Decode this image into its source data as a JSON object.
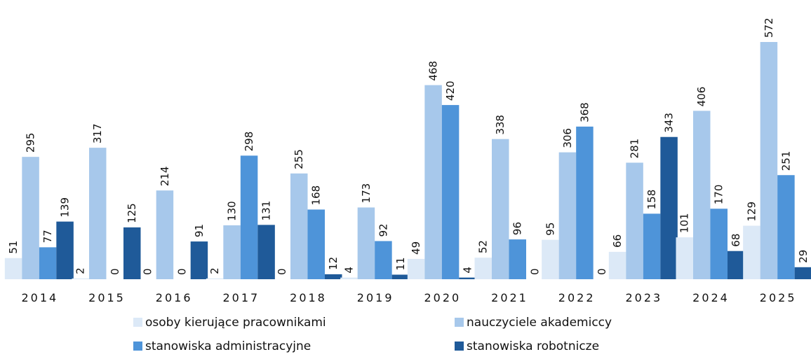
{
  "chart_data": {
    "type": "bar",
    "categories": [
      "2014",
      "2015",
      "2016",
      "2017",
      "2018",
      "2019",
      "2020",
      "2021",
      "2022",
      "2023",
      "2024",
      "2025"
    ],
    "series": [
      {
        "name": "osoby kierujące pracownikami",
        "color": "#dce9f7",
        "values": [
          51,
          2,
          0,
          2,
          0,
          4,
          49,
          52,
          95,
          66,
          101,
          129
        ]
      },
      {
        "name": "nauczyciele akademiccy",
        "color": "#a7c8eb",
        "values": [
          295,
          317,
          214,
          130,
          255,
          173,
          468,
          338,
          306,
          281,
          406,
          572
        ]
      },
      {
        "name": "stanowiska administracyjne",
        "color": "#4e94d9",
        "values": [
          77,
          0,
          0,
          298,
          168,
          92,
          420,
          96,
          368,
          158,
          170,
          251
        ]
      },
      {
        "name": "stanowiska robotnicze",
        "color": "#1f5a99",
        "values": [
          139,
          125,
          91,
          131,
          12,
          11,
          4,
          0,
          0,
          343,
          68,
          29
        ]
      }
    ]
  }
}
